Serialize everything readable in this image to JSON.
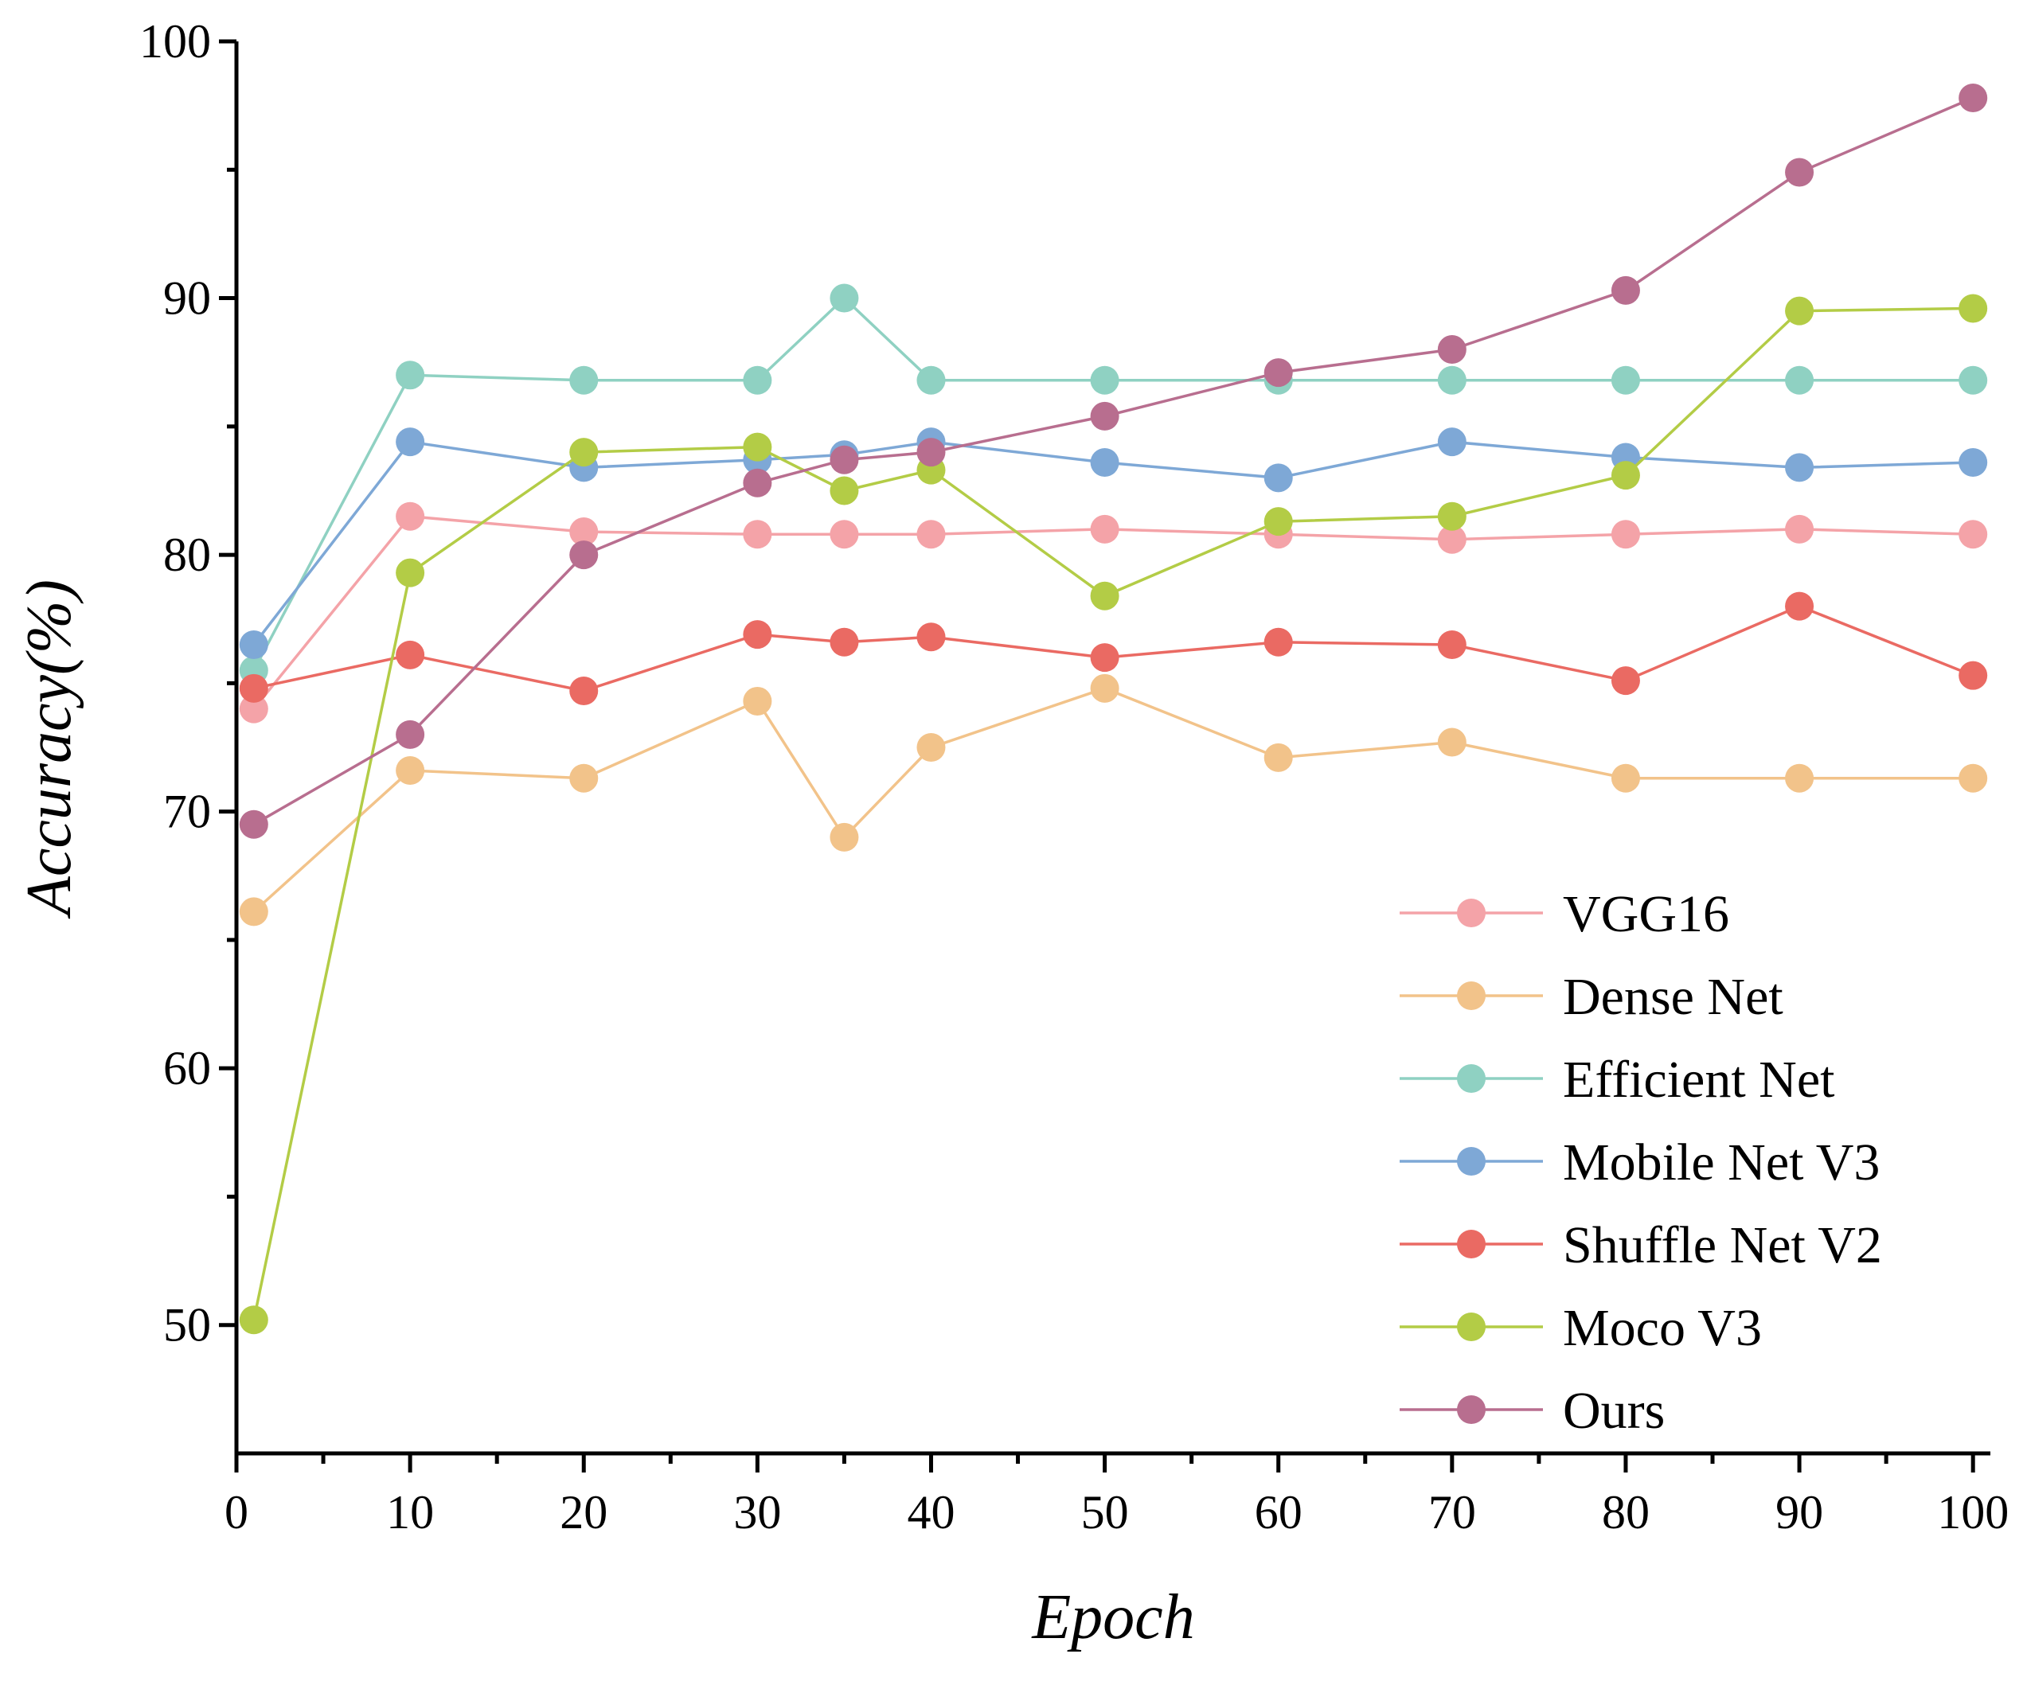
{
  "chart_data": {
    "type": "line",
    "title": "",
    "xlabel": "Epoch",
    "ylabel": "Accuracy(%)",
    "xlim": [
      0,
      101
    ],
    "ylim": [
      45,
      100
    ],
    "xticks": [
      0,
      10,
      20,
      30,
      40,
      50,
      60,
      70,
      80,
      90,
      100
    ],
    "yticks": [
      50,
      60,
      70,
      80,
      90,
      100
    ],
    "grid": false,
    "legend_position": "bottom-right",
    "series": [
      {
        "name": "VGG16",
        "color": "#f4a3a8",
        "x": [
          1,
          10,
          20,
          30,
          35,
          40,
          50,
          60,
          70,
          80,
          90,
          100
        ],
        "y": [
          74.0,
          81.5,
          80.9,
          80.8,
          80.8,
          80.8,
          81.0,
          80.8,
          80.6,
          80.8,
          81.0,
          80.8
        ]
      },
      {
        "name": "Dense Net",
        "color": "#f2c38a",
        "x": [
          1,
          10,
          20,
          30,
          35,
          40,
          50,
          60,
          70,
          80,
          90,
          100
        ],
        "y": [
          66.1,
          71.6,
          71.3,
          74.3,
          69.0,
          72.5,
          74.8,
          72.1,
          72.7,
          71.3,
          71.3,
          71.3
        ]
      },
      {
        "name": "Efficient Net",
        "color": "#8fd1c2",
        "x": [
          1,
          10,
          20,
          30,
          35,
          40,
          50,
          60,
          70,
          80,
          90,
          100
        ],
        "y": [
          75.5,
          87.0,
          86.8,
          86.8,
          90.0,
          86.8,
          86.8,
          86.8,
          86.8,
          86.8,
          86.8,
          86.8
        ]
      },
      {
        "name": "Mobile Net V3",
        "color": "#7ea8d6",
        "x": [
          1,
          10,
          20,
          30,
          35,
          40,
          50,
          60,
          70,
          80,
          90,
          100
        ],
        "y": [
          76.5,
          84.4,
          83.4,
          83.7,
          83.9,
          84.4,
          83.6,
          83.0,
          84.4,
          83.8,
          83.4,
          83.6
        ]
      },
      {
        "name": "Shuffle Net V2",
        "color": "#ea6a63",
        "x": [
          1,
          10,
          20,
          30,
          35,
          40,
          50,
          60,
          70,
          80,
          90,
          100
        ],
        "y": [
          74.8,
          76.1,
          74.7,
          76.9,
          76.6,
          76.8,
          76.0,
          76.6,
          76.5,
          75.1,
          78.0,
          75.3
        ]
      },
      {
        "name": "Moco V3",
        "color": "#b3cc46",
        "x": [
          1,
          10,
          20,
          30,
          35,
          40,
          50,
          60,
          70,
          80,
          90,
          100
        ],
        "y": [
          50.2,
          79.3,
          84.0,
          84.2,
          82.5,
          83.3,
          78.4,
          81.3,
          81.5,
          83.1,
          89.5,
          89.6
        ]
      },
      {
        "name": "Ours",
        "color": "#b86e8f",
        "x": [
          1,
          10,
          20,
          30,
          35,
          40,
          50,
          60,
          70,
          80,
          90,
          100
        ],
        "y": [
          69.5,
          73.0,
          80.0,
          82.8,
          83.7,
          84.0,
          85.4,
          87.1,
          88.0,
          90.3,
          94.9,
          97.8
        ]
      }
    ]
  }
}
